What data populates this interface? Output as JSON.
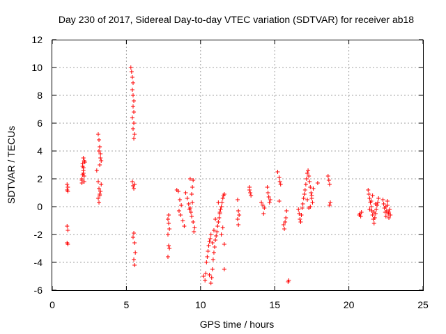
{
  "chart_data": {
    "type": "scatter",
    "title": "Day 230 of 2017, Sidereal Day-to-day VTEC variation (SDTVAR) for receiver ab18",
    "xlabel": "GPS time / hours",
    "ylabel": "SDTVAR / TECUs",
    "xlim": [
      0,
      25
    ],
    "ylim": [
      -6,
      12
    ],
    "xticks": [
      "0",
      "5",
      "10",
      "15",
      "20",
      "25"
    ],
    "yticks": [
      "-6",
      "-4",
      "-2",
      "0",
      "2",
      "4",
      "6",
      "8",
      "10",
      "12"
    ],
    "grid": true,
    "marker": "+",
    "color": "#ff0000",
    "series": [
      {
        "name": "SDTVAR",
        "x": [
          1.0,
          1.0,
          1.05,
          1.05,
          1.0,
          1.05,
          1.0,
          1.05,
          2.0,
          2.0,
          2.05,
          2.1,
          2.15,
          2.1,
          2.05,
          2.15,
          2.0,
          2.1,
          2.2,
          2.15,
          2.1,
          2.05,
          3.0,
          3.1,
          3.15,
          3.2,
          3.1,
          3.15,
          3.2,
          3.25,
          3.1,
          3.15,
          3.2,
          3.25,
          3.3,
          3.2,
          3.25,
          3.15,
          3.3,
          5.3,
          5.35,
          5.4,
          5.45,
          5.4,
          5.45,
          5.5,
          5.45,
          5.5,
          5.4,
          5.5,
          5.45,
          5.55,
          5.5,
          5.4,
          5.45,
          5.5,
          5.55,
          5.5,
          5.45,
          5.55,
          5.6,
          5.5,
          5.55,
          7.8,
          7.85,
          7.9,
          7.8,
          7.85,
          7.9,
          7.8,
          7.85,
          8.4,
          8.5,
          8.6,
          8.7,
          8.55,
          8.65,
          8.8,
          8.9,
          9.0,
          9.1,
          9.2,
          9.3,
          9.35,
          9.4,
          9.45,
          9.5,
          9.3,
          9.25,
          9.4,
          9.5,
          9.6,
          9.55,
          9.45,
          10.2,
          10.3,
          10.35,
          10.4,
          10.45,
          10.5,
          10.55,
          10.6,
          10.65,
          10.7,
          10.6,
          10.7,
          10.75,
          10.8,
          10.85,
          10.9,
          10.95,
          11.0,
          11.05,
          11.1,
          11.15,
          11.2,
          11.25,
          11.3,
          11.35,
          11.4,
          11.45,
          11.5,
          11.55,
          11.6,
          11.5,
          11.4,
          11.6,
          11.0,
          10.9,
          10.8,
          11.2,
          11.3,
          11.6,
          12.5,
          12.55,
          12.6,
          12.5,
          12.55,
          13.3,
          13.35,
          13.4,
          13.3,
          14.1,
          14.2,
          14.3,
          14.25,
          14.5,
          14.55,
          14.6,
          14.65,
          14.7,
          15.2,
          15.3,
          15.35,
          15.4,
          15.3,
          15.6,
          15.65,
          15.7,
          15.75,
          15.8,
          15.9,
          15.95,
          16.6,
          16.65,
          16.7,
          16.75,
          16.8,
          16.85,
          16.9,
          16.95,
          17.0,
          17.05,
          17.1,
          17.15,
          17.2,
          17.25,
          17.3,
          17.35,
          17.4,
          17.45,
          17.5,
          17.55,
          17.3,
          17.2,
          17.4,
          17.5,
          17.6,
          17.9,
          18.6,
          18.65,
          18.7,
          18.75,
          18.7,
          20.7,
          20.75,
          20.8,
          20.85,
          21.3,
          21.35,
          21.4,
          21.45,
          21.5,
          21.55,
          21.6,
          21.65,
          21.7,
          21.75,
          21.8,
          21.85,
          21.9,
          21.95,
          22.0,
          21.5,
          21.4,
          21.6,
          21.7,
          21.8,
          22.3,
          22.35,
          22.4,
          22.45,
          22.5,
          22.55,
          22.6,
          22.65,
          22.7,
          22.75,
          22.8,
          22.5,
          22.6,
          22.7
        ],
        "y": [
          1.6,
          1.2,
          1.4,
          1.1,
          -1.4,
          -1.7,
          -2.6,
          -2.7,
          1.7,
          2.0,
          2.3,
          2.8,
          3.3,
          3.5,
          3.1,
          2.2,
          1.9,
          2.6,
          3.2,
          1.8,
          2.4,
          2.9,
          2.6,
          1.8,
          1.3,
          0.9,
          0.6,
          0.3,
          0.8,
          1.1,
          5.2,
          4.8,
          4.3,
          3.8,
          3.3,
          3.0,
          3.5,
          4.0,
          1.6,
          10.0,
          9.7,
          9.3,
          8.9,
          8.4,
          8.0,
          7.6,
          7.2,
          6.8,
          6.4,
          6.0,
          5.6,
          5.2,
          4.9,
          1.8,
          1.5,
          1.3,
          1.6,
          -1.9,
          -2.2,
          -2.6,
          -3.3,
          -3.8,
          -4.2,
          -0.9,
          -1.2,
          -1.6,
          -2.0,
          -2.8,
          -3.0,
          -3.6,
          -0.6,
          1.2,
          1.1,
          0.5,
          0.1,
          -0.3,
          -0.6,
          -1.0,
          -1.4,
          1.0,
          0.6,
          0.2,
          -0.1,
          -0.4,
          0.9,
          1.4,
          1.9,
          2.0,
          -0.2,
          -0.7,
          -1.1,
          -1.5,
          -1.8,
          0.3,
          -5.0,
          -5.3,
          -4.8,
          -4.0,
          -3.6,
          -3.2,
          -2.8,
          -2.5,
          -2.3,
          -2.0,
          -4.9,
          -5.5,
          -5.1,
          -4.5,
          -3.8,
          -3.3,
          -2.9,
          -2.4,
          -2.1,
          -1.8,
          -1.4,
          -1.1,
          -0.8,
          -0.5,
          -0.2,
          0.0,
          0.3,
          0.6,
          0.8,
          0.9,
          -1.5,
          -2.0,
          -2.7,
          -0.9,
          -1.7,
          -2.6,
          0.3,
          -0.4,
          -4.5,
          0.5,
          -0.3,
          -0.6,
          -0.9,
          -1.3,
          1.4,
          1.0,
          0.8,
          1.2,
          0.3,
          0.1,
          -0.1,
          -0.5,
          1.4,
          1.0,
          0.7,
          0.3,
          0.5,
          2.5,
          2.1,
          1.8,
          1.6,
          0.4,
          -1.3,
          -1.6,
          -1.1,
          -0.8,
          -0.3,
          -5.4,
          -5.3,
          -0.2,
          -0.5,
          -0.9,
          -1.1,
          -0.6,
          -0.1,
          0.2,
          0.6,
          0.9,
          1.2,
          1.6,
          2.0,
          2.4,
          2.6,
          2.2,
          1.8,
          1.4,
          1.0,
          0.6,
          0.3,
          -0.1,
          0.5,
          0.0,
          0.8,
          1.3,
          1.7,
          2.2,
          1.9,
          1.6,
          0.3,
          0.1,
          -0.6,
          -0.5,
          -0.7,
          -0.4,
          1.2,
          0.9,
          0.6,
          0.3,
          0.0,
          -0.3,
          -0.6,
          -0.9,
          -1.2,
          -0.8,
          -0.5,
          -0.2,
          0.1,
          0.3,
          0.6,
          0.4,
          -0.2,
          0.8,
          -0.4,
          0.2,
          0.5,
          0.2,
          -0.1,
          -0.4,
          -0.7,
          -0.3,
          0.1,
          -0.5,
          -0.8,
          -0.2,
          -0.6,
          0.0,
          0.4,
          -0.4
        ]
      }
    ]
  }
}
